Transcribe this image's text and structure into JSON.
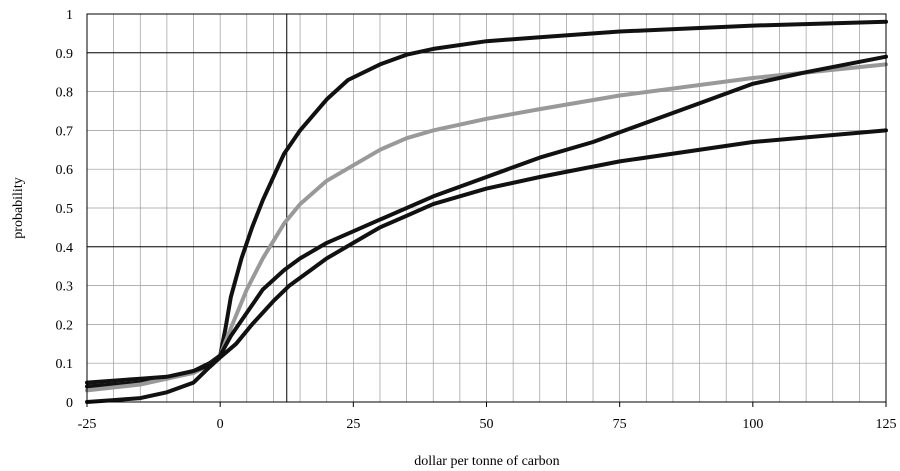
{
  "chart_data": {
    "type": "line",
    "xlabel": "dollar per tonne of carbon",
    "ylabel": "probability",
    "xlim": [
      -25,
      125
    ],
    "ylim": [
      0,
      1
    ],
    "x_ticks": [
      -25,
      0,
      25,
      50,
      75,
      100,
      125
    ],
    "y_ticks": [
      0,
      0.1,
      0.2,
      0.3,
      0.4,
      0.5,
      0.6,
      0.7,
      0.8,
      0.9,
      1
    ],
    "x_tick_labels": [
      "-25",
      "0",
      "25",
      "50",
      "75",
      "100",
      "125"
    ],
    "y_tick_labels": [
      "0",
      "0.1",
      "0.2",
      "0.3",
      "0.4",
      "0.5",
      "0.6",
      "0.7",
      "0.8",
      "0.9",
      "1"
    ],
    "x_minor_grid_step": 5,
    "y_grid_step": 0.1,
    "reference_lines": {
      "x": 12.5,
      "y": [
        0.4,
        0.9
      ]
    },
    "grid": true,
    "legend": "none",
    "series": [
      {
        "color": "#111111",
        "points": [
          [
            -25,
            0.04
          ],
          [
            -15,
            0.05
          ],
          [
            -10,
            0.06
          ],
          [
            -5,
            0.08
          ],
          [
            -2,
            0.1
          ],
          [
            0,
            0.12
          ],
          [
            1,
            0.19
          ],
          [
            2,
            0.27
          ],
          [
            4,
            0.37
          ],
          [
            6,
            0.45
          ],
          [
            8,
            0.52
          ],
          [
            10,
            0.58
          ],
          [
            12,
            0.64
          ],
          [
            15,
            0.7
          ],
          [
            20,
            0.78
          ],
          [
            24,
            0.83
          ],
          [
            30,
            0.87
          ],
          [
            35,
            0.895
          ],
          [
            40,
            0.91
          ],
          [
            50,
            0.93
          ],
          [
            60,
            0.94
          ],
          [
            75,
            0.955
          ],
          [
            100,
            0.97
          ],
          [
            125,
            0.98
          ]
        ]
      },
      {
        "color": "#999999",
        "points": [
          [
            -25,
            0.03
          ],
          [
            -15,
            0.045
          ],
          [
            -10,
            0.06
          ],
          [
            -5,
            0.075
          ],
          [
            -2,
            0.095
          ],
          [
            0,
            0.12
          ],
          [
            2,
            0.19
          ],
          [
            5,
            0.29
          ],
          [
            8,
            0.37
          ],
          [
            12,
            0.46
          ],
          [
            15,
            0.51
          ],
          [
            20,
            0.57
          ],
          [
            25,
            0.61
          ],
          [
            30,
            0.65
          ],
          [
            35,
            0.68
          ],
          [
            40,
            0.7
          ],
          [
            50,
            0.73
          ],
          [
            60,
            0.755
          ],
          [
            75,
            0.79
          ],
          [
            100,
            0.835
          ],
          [
            125,
            0.87
          ]
        ]
      },
      {
        "color": "#111111",
        "points": [
          [
            -25,
            0.05
          ],
          [
            -15,
            0.06
          ],
          [
            -10,
            0.065
          ],
          [
            -5,
            0.08
          ],
          [
            -2,
            0.095
          ],
          [
            0,
            0.12
          ],
          [
            2,
            0.17
          ],
          [
            5,
            0.23
          ],
          [
            8,
            0.29
          ],
          [
            12,
            0.34
          ],
          [
            15,
            0.37
          ],
          [
            20,
            0.41
          ],
          [
            25,
            0.44
          ],
          [
            30,
            0.47
          ],
          [
            40,
            0.53
          ],
          [
            50,
            0.58
          ],
          [
            60,
            0.63
          ],
          [
            70,
            0.67
          ],
          [
            80,
            0.72
          ],
          [
            90,
            0.77
          ],
          [
            100,
            0.82
          ],
          [
            110,
            0.85
          ],
          [
            125,
            0.89
          ]
        ]
      },
      {
        "color": "#111111",
        "points": [
          [
            -25,
            0.0
          ],
          [
            -20,
            0.005
          ],
          [
            -15,
            0.01
          ],
          [
            -10,
            0.025
          ],
          [
            -5,
            0.05
          ],
          [
            -2,
            0.09
          ],
          [
            0,
            0.115
          ],
          [
            3,
            0.15
          ],
          [
            6,
            0.2
          ],
          [
            10,
            0.26
          ],
          [
            13,
            0.3
          ],
          [
            17,
            0.34
          ],
          [
            20,
            0.37
          ],
          [
            25,
            0.41
          ],
          [
            30,
            0.45
          ],
          [
            35,
            0.48
          ],
          [
            40,
            0.51
          ],
          [
            50,
            0.55
          ],
          [
            60,
            0.58
          ],
          [
            75,
            0.62
          ],
          [
            100,
            0.67
          ],
          [
            125,
            0.7
          ]
        ]
      }
    ]
  }
}
